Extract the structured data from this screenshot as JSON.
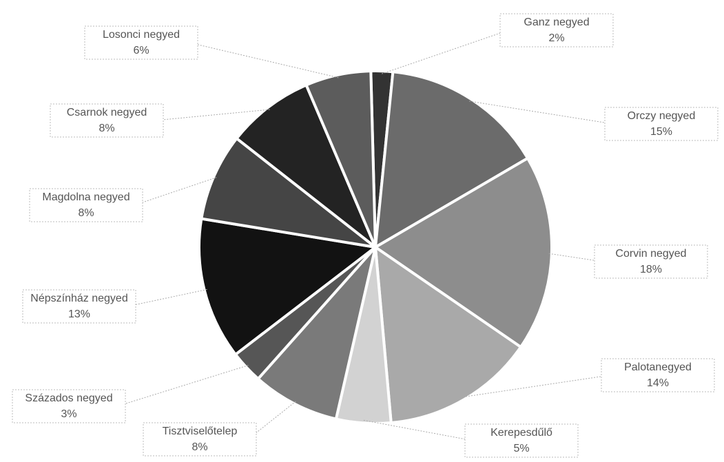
{
  "chart_data": {
    "type": "pie",
    "categories": [
      "Ganz negyed",
      "Orczy negyed",
      "Corvin negyed",
      "Palotanegyed",
      "Kerepesdűlő",
      "Tisztviselőtelep",
      "Százados negyed",
      "Népszínház negyed",
      "Magdolna negyed",
      "Csarnok negyed",
      "Losonci negyed"
    ],
    "values": [
      2,
      15,
      18,
      14,
      5,
      8,
      3,
      13,
      8,
      8,
      6
    ],
    "value_labels": [
      "2%",
      "15%",
      "18%",
      "14%",
      "5%",
      "8%",
      "3%",
      "13%",
      "8%",
      "8%",
      "6%"
    ],
    "colors": [
      "#333333",
      "#6b6b6b",
      "#8d8d8d",
      "#a9a9a9",
      "#d2d2d2",
      "#7a7a7a",
      "#565656",
      "#121212",
      "#454545",
      "#232323",
      "#5c5c5c"
    ]
  }
}
